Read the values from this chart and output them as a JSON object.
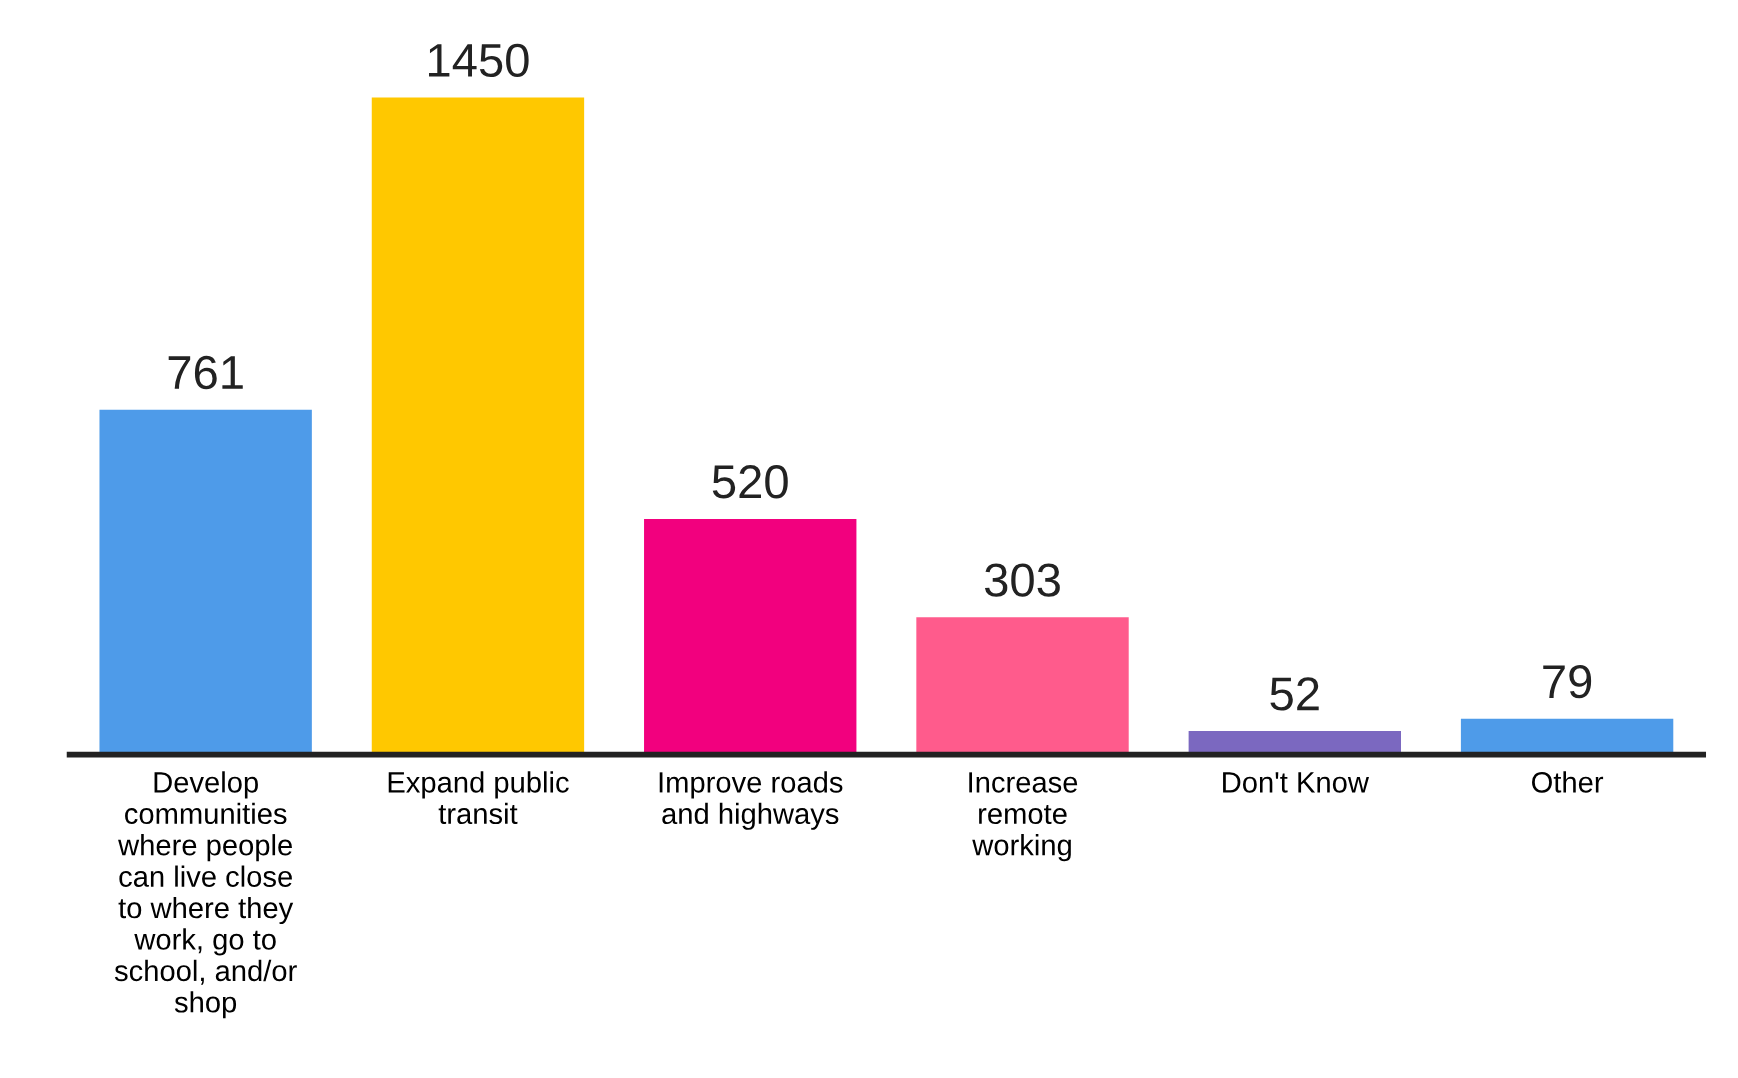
{
  "chart_data": {
    "type": "bar",
    "categories": [
      "Develop\ncommunities\nwhere people\ncan live close\nto where they\nwork, go to\nschool, and/or\nshop",
      "Expand public\ntransit",
      "Improve roads\nand highways",
      "Increase\nremote\nworking",
      "Don't Know",
      "Other"
    ],
    "values": [
      761,
      1450,
      520,
      303,
      52,
      79
    ],
    "colors": [
      "#4e9be9",
      "#ffc800",
      "#f2007e",
      "#ff5b8c",
      "#7b68c0",
      "#4e9be9"
    ],
    "data_labels": true
  }
}
